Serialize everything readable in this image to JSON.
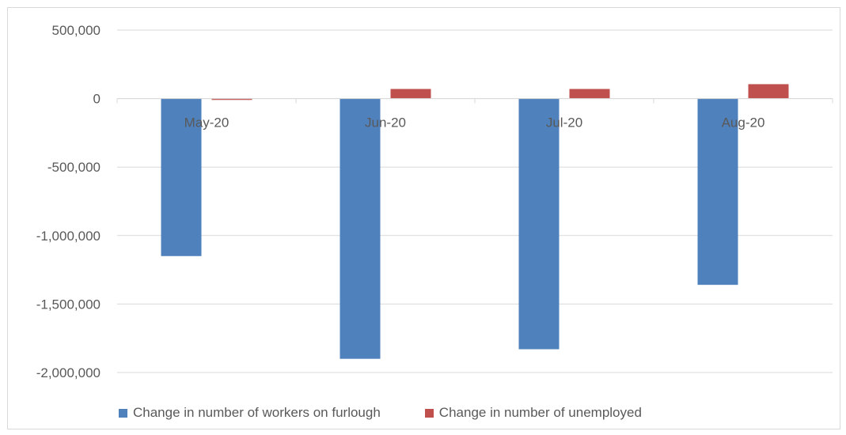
{
  "chart_data": {
    "type": "bar",
    "categories": [
      "May-20",
      "Jun-20",
      "Jul-20",
      "Aug-20"
    ],
    "series": [
      {
        "name": "Change in number of workers on furlough",
        "color": "#4f81bd",
        "values": [
          -1150000,
          -1900000,
          -1830000,
          -1360000
        ]
      },
      {
        "name": "Change in number of unemployed",
        "color": "#c0504d",
        "values": [
          -10000,
          70000,
          70000,
          105000
        ]
      }
    ],
    "yticks": [
      500000,
      0,
      -500000,
      -1000000,
      -1500000,
      -2000000
    ],
    "ytick_labels": [
      "500,000",
      "0",
      "-500,000",
      "-1,000,000",
      "-1,500,000",
      "-2,000,000"
    ],
    "ylim": [
      -2000000,
      500000
    ],
    "title": "",
    "xlabel": "",
    "ylabel": "",
    "grid": true,
    "legend_position": "bottom",
    "gridline_color": "#d9d9d9",
    "axis_text_color": "#595959"
  }
}
